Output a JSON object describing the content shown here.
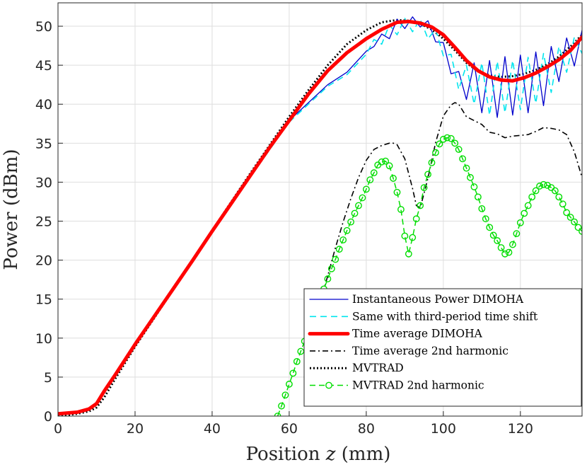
{
  "chart_data": {
    "type": "line",
    "title": "",
    "xlabel": "Position z (mm)",
    "xlabel_prefix": "Position ",
    "xlabel_var": "z",
    "xlabel_unit": " (mm)",
    "ylabel": "Power (dBm)",
    "xlim": [
      0,
      136
    ],
    "ylim": [
      0,
      53
    ],
    "xticks": [
      0,
      20,
      40,
      60,
      80,
      100,
      120
    ],
    "yticks": [
      0,
      5,
      10,
      15,
      20,
      25,
      30,
      35,
      40,
      45,
      50
    ],
    "legend_position": "bottom-right",
    "series": [
      {
        "name": "Instantaneous Power DIMOHA",
        "color": "#0000cc",
        "style": "solid-thin",
        "x": [
          0,
          5,
          8,
          10,
          15,
          20,
          30,
          40,
          50,
          60,
          70,
          75,
          80,
          82,
          84,
          86,
          88,
          90,
          92,
          94,
          96,
          98,
          100,
          102,
          104,
          106,
          108,
          110,
          112,
          114,
          116,
          118,
          120,
          122,
          124,
          126,
          128,
          130,
          132,
          134,
          136
        ],
        "y": [
          0.4,
          0.6,
          1.0,
          1.8,
          5.4,
          9.2,
          16.4,
          23.7,
          30.9,
          37.9,
          42.5,
          44.1,
          46.8,
          47.4,
          49.0,
          48.4,
          50.9,
          49.7,
          51.2,
          49.9,
          50.7,
          48.0,
          47.9,
          43.9,
          44.2,
          40.6,
          45.3,
          38.9,
          45.6,
          38.3,
          46.1,
          38.6,
          46.3,
          38.9,
          46.7,
          39.8,
          47.4,
          42.9,
          48.5,
          44.9,
          49.5
        ]
      },
      {
        "name": "Same with third-period time shift",
        "color": "#00e5ee",
        "style": "dashed",
        "x": [
          0,
          5,
          8,
          10,
          15,
          20,
          30,
          40,
          50,
          60,
          70,
          75,
          80,
          82,
          84,
          86,
          88,
          90,
          92,
          94,
          96,
          98,
          100,
          102,
          104,
          106,
          108,
          110,
          112,
          114,
          116,
          118,
          120,
          122,
          124,
          126,
          128,
          130,
          132,
          134,
          136
        ],
        "y": [
          0.2,
          0.5,
          0.9,
          1.7,
          5.2,
          9.0,
          16.2,
          23.5,
          30.7,
          37.7,
          42.3,
          43.8,
          46.4,
          48.3,
          47.7,
          50.2,
          48.9,
          51.0,
          49.3,
          50.9,
          48.4,
          49.6,
          46.2,
          46.4,
          41.9,
          45.0,
          40.0,
          45.3,
          38.6,
          45.5,
          38.9,
          45.6,
          39.3,
          46.0,
          40.1,
          46.5,
          41.5,
          47.4,
          44.1,
          48.6,
          46.5
        ]
      },
      {
        "name": "Time average DIMOHA",
        "color": "#ff0000",
        "style": "thick",
        "x": [
          0,
          5,
          8,
          10,
          12,
          15,
          20,
          25,
          30,
          35,
          40,
          45,
          50,
          55,
          60,
          65,
          70,
          75,
          80,
          84,
          88,
          91,
          94,
          97,
          100,
          103,
          106,
          109,
          112,
          115,
          118,
          121,
          124,
          127,
          130,
          133,
          136
        ],
        "y": [
          0.3,
          0.5,
          0.9,
          1.6,
          3.2,
          5.4,
          9.2,
          12.8,
          16.4,
          20.0,
          23.7,
          27.3,
          30.9,
          34.5,
          37.9,
          41.3,
          44.3,
          46.6,
          48.4,
          49.6,
          50.5,
          50.6,
          50.4,
          49.9,
          48.9,
          47.3,
          45.6,
          44.3,
          43.5,
          43.1,
          43.0,
          43.4,
          44.0,
          44.8,
          45.7,
          46.9,
          48.6
        ]
      },
      {
        "name": "Time average 2nd harmonic",
        "color": "#000000",
        "style": "dashdot",
        "x": [
          67,
          68,
          70,
          72,
          74,
          76,
          78,
          80,
          82,
          84,
          86,
          87,
          88,
          90,
          92,
          93,
          94,
          96,
          98,
          100,
          102,
          103,
          104,
          106,
          108,
          110,
          112,
          114,
          116,
          118,
          120,
          122,
          124,
          126,
          128,
          130,
          132,
          134,
          136
        ],
        "y": [
          12.5,
          14.5,
          18.0,
          21.6,
          24.9,
          27.9,
          30.6,
          32.8,
          34.2,
          34.7,
          35.0,
          35.0,
          34.8,
          33.0,
          29.2,
          27.0,
          26.7,
          30.5,
          35.1,
          38.5,
          39.9,
          40.2,
          40.0,
          38.4,
          37.9,
          37.4,
          36.4,
          36.2,
          35.7,
          35.9,
          36.0,
          36.1,
          36.5,
          37.0,
          36.9,
          36.7,
          36.1,
          33.9,
          30.6
        ]
      },
      {
        "name": "MVTRAD",
        "color": "#000000",
        "style": "dotted",
        "x": [
          0,
          5,
          8,
          10,
          12,
          15,
          20,
          25,
          30,
          35,
          40,
          45,
          50,
          55,
          60,
          65,
          70,
          75,
          80,
          84,
          88,
          91,
          94,
          97,
          100,
          103,
          106,
          109,
          112,
          115,
          118,
          121,
          124,
          127,
          130,
          133,
          136
        ],
        "y": [
          0.0,
          0.3,
          0.6,
          1.1,
          2.4,
          4.9,
          8.9,
          12.6,
          16.3,
          20.0,
          23.8,
          27.5,
          31.2,
          34.8,
          38.4,
          41.8,
          45.0,
          47.7,
          49.5,
          50.5,
          50.8,
          50.7,
          50.3,
          49.6,
          48.4,
          46.9,
          45.3,
          44.2,
          43.7,
          43.5,
          43.6,
          43.9,
          44.4,
          45.1,
          46.1,
          47.4,
          48.9
        ]
      },
      {
        "name": "MVTRAD 2nd harmonic",
        "color": "#00dd00",
        "style": "dashed-circle",
        "x": [
          57,
          58,
          59,
          60,
          61,
          62,
          63,
          64,
          65,
          66,
          67,
          68,
          69,
          70,
          71,
          72,
          73,
          74,
          75,
          76,
          77,
          78,
          79,
          80,
          81,
          82,
          83,
          84,
          85,
          86,
          87,
          88,
          89,
          90,
          91,
          92,
          93,
          94,
          95,
          96,
          97,
          98,
          99,
          100,
          101,
          102,
          103,
          104,
          105,
          106,
          107,
          108,
          109,
          110,
          111,
          112,
          113,
          114,
          115,
          116,
          117,
          118,
          119,
          120,
          121,
          122,
          123,
          124,
          125,
          126,
          127,
          128,
          129,
          130,
          131,
          132,
          133,
          134,
          135,
          136
        ],
        "y": [
          0.0,
          1.3,
          2.7,
          4.1,
          5.5,
          7.0,
          8.3,
          9.6,
          10.9,
          12.5,
          13.8,
          14.9,
          16.3,
          17.6,
          18.9,
          20.1,
          21.4,
          22.6,
          23.8,
          24.9,
          26.0,
          27.0,
          28.0,
          29.1,
          30.3,
          31.2,
          32.2,
          32.6,
          32.7,
          32.1,
          30.5,
          28.7,
          26.5,
          23.1,
          20.8,
          22.9,
          25.3,
          27.0,
          29.3,
          31.0,
          32.5,
          33.8,
          34.9,
          35.5,
          35.7,
          35.6,
          35.0,
          34.2,
          33.0,
          31.8,
          30.6,
          29.4,
          28.1,
          26.6,
          25.3,
          24.2,
          23.2,
          22.5,
          21.6,
          20.8,
          21.0,
          22.0,
          23.4,
          24.8,
          26.0,
          27.0,
          28.1,
          28.9,
          29.5,
          29.7,
          29.6,
          29.3,
          28.9,
          28.1,
          27.2,
          26.1,
          25.5,
          24.9,
          24.2,
          23.7
        ]
      }
    ]
  }
}
